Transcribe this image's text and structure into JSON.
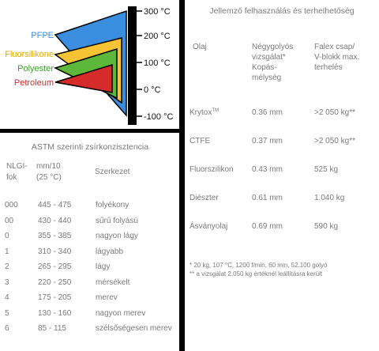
{
  "diagram": {
    "temperatures": [
      "300 °C",
      "200 °C",
      "100 °C",
      "0 °C",
      "-100 °C"
    ],
    "oils": [
      {
        "name": "PFPE",
        "color": "#3b8de0"
      },
      {
        "name": "Fluorsilikone",
        "color": "#f5c333"
      },
      {
        "name": "Polyester",
        "color": "#5cb73a"
      },
      {
        "name": "Petroleum",
        "color": "#d62b2b"
      }
    ]
  },
  "astm": {
    "title": "ASTM szerinti zsírkonzisztencia",
    "headers": {
      "nlgi": [
        "NLGI-",
        "fok"
      ],
      "penetration": [
        "mm/10",
        "(25 °C)"
      ],
      "structure": "Szerkezet"
    },
    "rows": [
      {
        "nlgi": "000",
        "range": "445 - 475",
        "structure": "folyékony"
      },
      {
        "nlgi": "00",
        "range": "430 - 440",
        "structure": "sűrű folyású"
      },
      {
        "nlgi": "0",
        "range": "355 - 385",
        "structure": "nagyon lágy"
      },
      {
        "nlgi": "1",
        "range": "310 - 340",
        "structure": "lágyabb"
      },
      {
        "nlgi": "2",
        "range": "265 - 295",
        "structure": "lágy"
      },
      {
        "nlgi": "3",
        "range": "220 - 250",
        "structure": "mérsékelt"
      },
      {
        "nlgi": "4",
        "range": "175 - 205",
        "structure": "merev"
      },
      {
        "nlgi": "5",
        "range": "130 - 160",
        "structure": "nagyon merev"
      },
      {
        "nlgi": "6",
        "range": "85 - 115",
        "structure": "szélsőségesen merev"
      }
    ]
  },
  "usage": {
    "title": "Jellemző felhasználás és terhelhetőség",
    "headers": {
      "oil": "Olaj",
      "fourball": [
        "Négygolyós",
        "vizsgálat*",
        "Kopás-",
        "mélység"
      ],
      "falex": [
        "Falex csap/",
        "V-blokk max.",
        "terhelés"
      ]
    },
    "rows": [
      {
        "oil": "Krytox",
        "oil_mark": "TM",
        "depth": "0.36 mm",
        "load": ">2 050 kg**"
      },
      {
        "oil": "CTFE",
        "oil_mark": "",
        "depth": "0.37 mm",
        "load": ">2 050 kg**"
      },
      {
        "oil": "Fluorszilikon",
        "oil_mark": "",
        "depth": "0.43 mm",
        "load": "525 kg"
      },
      {
        "oil": "Diészter",
        "oil_mark": "",
        "depth": "0.61 mm",
        "load": "1.040 kg"
      },
      {
        "oil": "Ásványolaj",
        "oil_mark": "",
        "depth": "0.69 mm",
        "load": "590 kg"
      }
    ],
    "footnotes": [
      "* 20 kg, 107 °C, 1200 f/min, 60 min, 52.100 golyó",
      "** a vizsgálat 2.050 kg értéknél leállításra került"
    ]
  }
}
